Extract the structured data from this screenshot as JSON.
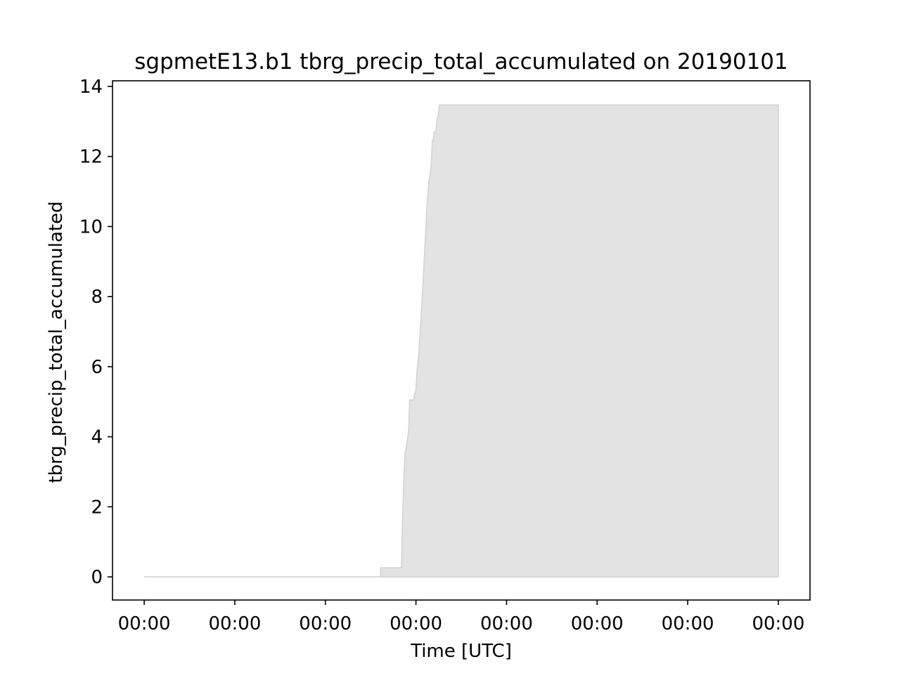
{
  "chart_data": {
    "type": "area",
    "title": "sgpmetE13.b1 tbrg_precip_total_accumulated on 20190101",
    "xlabel": "Time [UTC]",
    "ylabel": "tbrg_precip_total_accumulated",
    "x_tick_labels": [
      "00:00",
      "00:00",
      "00:00",
      "00:00",
      "00:00",
      "00:00",
      "00:00",
      "00:00"
    ],
    "y_ticks": [
      0,
      2,
      4,
      6,
      8,
      10,
      12,
      14
    ],
    "xlim": [
      -0.35,
      7.35
    ],
    "ylim": [
      -0.66,
      14.16
    ],
    "grid": false,
    "series": [
      {
        "color": "#e3e3e3",
        "edge_color": "#d3d3d3",
        "x": [
          0,
          2.61,
          2.61,
          2.84,
          2.85,
          2.87,
          2.88,
          2.9,
          2.92,
          2.93,
          2.97,
          3.0,
          3.01,
          3.03,
          3.05,
          3.07,
          3.1,
          3.12,
          3.14,
          3.17,
          3.18,
          3.19,
          3.2,
          3.22,
          3.23,
          3.25,
          3.26,
          3.28,
          3.3,
          3.33,
          3.54,
          7.0
        ],
        "y": [
          0,
          0,
          0.26,
          0.26,
          1.5,
          3.0,
          3.55,
          3.8,
          4.2,
          5.05,
          5.05,
          5.35,
          5.85,
          6.3,
          7.1,
          8.0,
          9.5,
          10.5,
          11.2,
          11.8,
          12.45,
          12.45,
          12.7,
          12.7,
          13.0,
          13.25,
          13.47,
          13.47,
          13.47,
          13.47,
          13.47,
          13.47
        ]
      }
    ]
  }
}
